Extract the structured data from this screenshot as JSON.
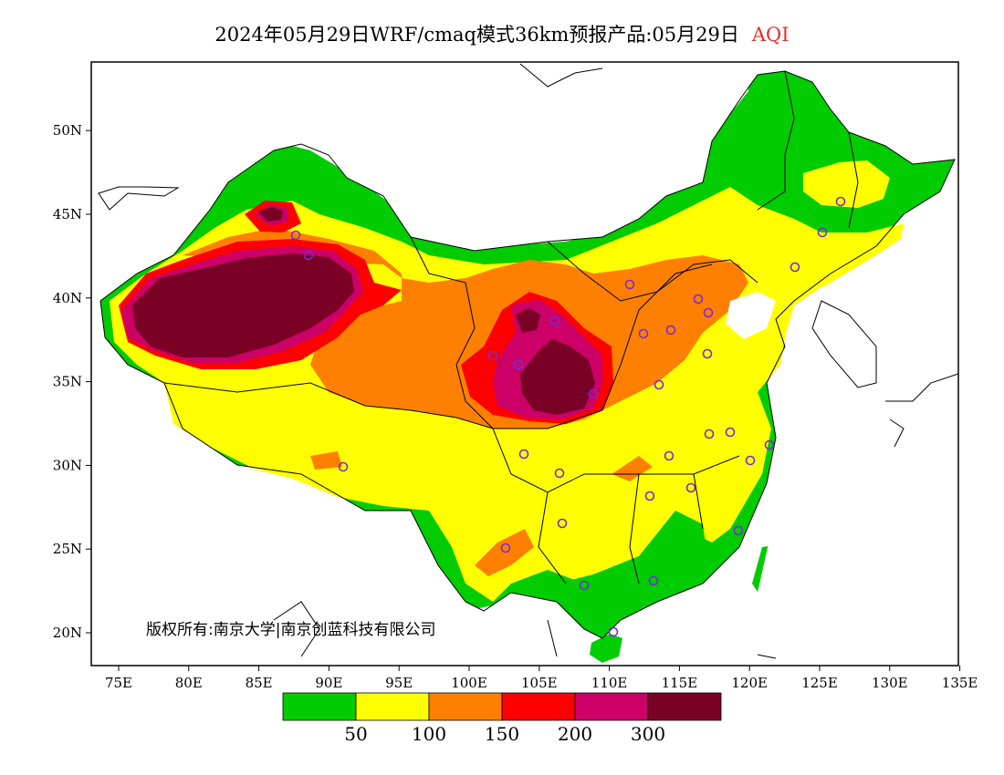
{
  "title": {
    "main": "2024年05月29日WRF/cmaq模式36km预报产品:05月29日",
    "variable": "AQI"
  },
  "copyright": "版权所有:南京大学|南京创蓝科技有限公司",
  "axes": {
    "x_ticks": [
      "75E",
      "80E",
      "85E",
      "90E",
      "95E",
      "100E",
      "105E",
      "110E",
      "115E",
      "120E",
      "125E",
      "130E",
      "135E"
    ],
    "y_ticks": [
      "20N",
      "25N",
      "30N",
      "35N",
      "40N",
      "45N",
      "50N"
    ]
  },
  "legend": {
    "colors": [
      "#00cc00",
      "#ffff00",
      "#ff8000",
      "#ff0000",
      "#cc0066",
      "#7a0026"
    ],
    "labels": [
      "50",
      "100",
      "150",
      "200",
      "300"
    ]
  },
  "stations": 32
}
